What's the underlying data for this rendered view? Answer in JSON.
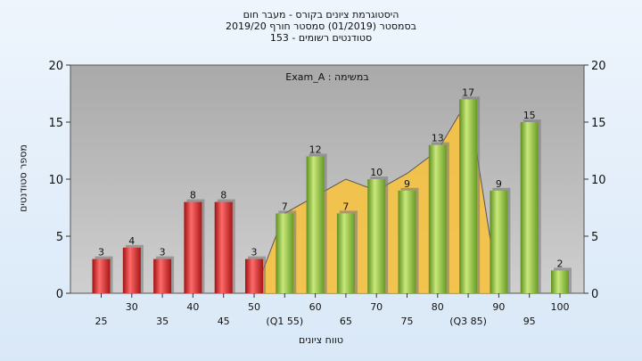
{
  "header": {
    "line1": "היסטוגרמת ציונים בקורס - מעבר חום",
    "line2": "בסמסטר  (01/2019)  סמסטר חורף 2019/20",
    "line3": "סטודנטים רשומים - 153"
  },
  "colors": {
    "fail_bar": "#d42a2a",
    "pass_bar": "#8dbb3c",
    "cumulative_area": "#f7c242",
    "plot_bg": "#bdbdbd"
  },
  "chart_data": {
    "type": "bar",
    "annotation": "Exam_A : במשימה",
    "xlabel": "טווח ציונים",
    "ylabel": "מספר סטודנטים",
    "ylim": [
      0,
      20
    ],
    "yticks": [
      "0",
      "5",
      "10",
      "15",
      "20"
    ],
    "grid": false,
    "categories": [
      "25",
      "30",
      "35",
      "40",
      "45",
      "50",
      "(Q1 55)",
      "60",
      "65",
      "70",
      "75",
      "80",
      "(Q3 85)",
      "90",
      "95",
      "100"
    ],
    "values": [
      3,
      4,
      3,
      8,
      8,
      3,
      7,
      12,
      7,
      10,
      9,
      13,
      17,
      9,
      15,
      2
    ],
    "value_labels": [
      "3",
      "4",
      "3",
      "8",
      "8",
      "3",
      "7",
      "12",
      "7",
      "10",
      "9",
      "13",
      "17",
      "9",
      "15",
      "2"
    ],
    "pass_threshold": 55,
    "background_area": {
      "x": [
        "50",
        "(Q1 55)",
        "60",
        "65",
        "70",
        "75",
        "80",
        "(Q3 85)",
        "90"
      ],
      "values": [
        0,
        7,
        8.5,
        10,
        9,
        10.5,
        12.5,
        17,
        0
      ]
    }
  }
}
